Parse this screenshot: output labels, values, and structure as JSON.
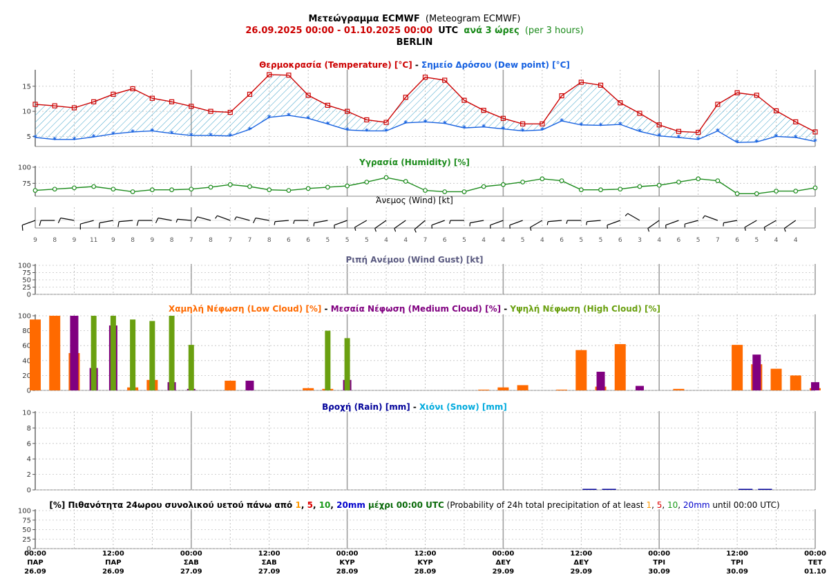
{
  "header": {
    "title_bold": "Μετεώγραμμα ECMWF",
    "title_normal": "(Meteogram ECMWF)",
    "range": "26.09.2025 00:00 - 01.10.2025 00:00",
    "utc": "UTC",
    "step_bold": "ανά 3 ώρες",
    "step_normal": "(per 3 hours)",
    "city": "BERLIN"
  },
  "colors": {
    "temperature": "#cc0000",
    "dewpoint": "#1560e0",
    "hatch": "#3aa0c8",
    "humidity": "#1a8a1a",
    "gust_title": "#5a5a80",
    "low_cloud": "#ff6a00",
    "medium_cloud": "#800080",
    "high_cloud": "#6aa010",
    "rain": "#000099",
    "snow": "#00aadd",
    "grid_solid": "#999999",
    "grid_dash": "#999999"
  },
  "x_labels": [
    {
      "time": "00:00",
      "day": "ΠΑΡ",
      "date": "26.09"
    },
    {
      "time": "12:00",
      "day": "ΠΑΡ",
      "date": "26.09"
    },
    {
      "time": "00:00",
      "day": "ΣΑΒ",
      "date": "27.09"
    },
    {
      "time": "12:00",
      "day": "ΣΑΒ",
      "date": "27.09"
    },
    {
      "time": "00:00",
      "day": "ΚΥΡ",
      "date": "28.09"
    },
    {
      "time": "12:00",
      "day": "ΚΥΡ",
      "date": "28.09"
    },
    {
      "time": "00:00",
      "day": "ΔΕΥ",
      "date": "29.09"
    },
    {
      "time": "12:00",
      "day": "ΔΕΥ",
      "date": "29.09"
    },
    {
      "time": "00:00",
      "day": "ΤΡΙ",
      "date": "30.09"
    },
    {
      "time": "12:00",
      "day": "ΤΡΙ",
      "date": "30.09"
    },
    {
      "time": "00:00",
      "day": "ΤΕΤ",
      "date": "01.10"
    }
  ],
  "chart_data": [
    {
      "type": "line",
      "panel": "temperature",
      "title_parts": [
        {
          "text": "Θερμοκρασία (Temperature) [°C]",
          "role": "temperature"
        },
        {
          "text": " - ",
          "role": "sep"
        },
        {
          "text": "Σημείο Δρόσου (Dew point) [°C]",
          "role": "dewpoint"
        }
      ],
      "step_hours": 3,
      "yticks": [
        5,
        10,
        15
      ],
      "ylim": [
        3,
        18
      ],
      "series": [
        {
          "name": "Θερμοκρασία (Temperature) [°C]",
          "values": [
            11.4,
            11.1,
            10.7,
            11.9,
            13.4,
            14.5,
            12.6,
            11.9,
            11.0,
            10.0,
            9.8,
            13.4,
            17.3,
            17.2,
            13.2,
            11.2,
            10.0,
            8.3,
            7.8,
            12.8,
            16.8,
            16.2,
            12.2,
            10.2,
            8.6,
            7.5,
            7.5,
            13.1,
            15.8,
            15.2,
            11.7,
            9.6,
            7.3,
            6.0,
            5.8,
            11.4,
            13.7,
            13.2,
            10.1,
            7.9,
            5.9
          ]
        },
        {
          "name": "Σημείο Δρόσου (Dew point) [°C]",
          "values": [
            4.8,
            4.4,
            4.4,
            4.9,
            5.5,
            5.9,
            6.1,
            5.6,
            5.2,
            5.2,
            5.1,
            6.4,
            8.8,
            9.2,
            8.6,
            7.5,
            6.3,
            6.1,
            6.1,
            7.7,
            7.9,
            7.6,
            6.7,
            6.9,
            6.5,
            6.1,
            6.3,
            8.1,
            7.3,
            7.2,
            7.4,
            6.0,
            5.1,
            4.8,
            4.4,
            6.1,
            3.8,
            3.9,
            5.0,
            4.8,
            4.0
          ]
        }
      ]
    },
    {
      "type": "line",
      "panel": "humidity",
      "title_parts": [
        {
          "text": "Υγρασία (Humidity) [%]",
          "role": "humidity"
        }
      ],
      "step_hours": 3,
      "yticks": [
        75,
        100
      ],
      "ylim": [
        55,
        100
      ],
      "series": [
        {
          "name": "Υγρασία (Humidity) [%]",
          "values": [
            64,
            66,
            68,
            70,
            66,
            62,
            65,
            65,
            66,
            69,
            73,
            70,
            65,
            64,
            67,
            69,
            71,
            77,
            84,
            78,
            64,
            62,
            62,
            70,
            73,
            77,
            82,
            79,
            65,
            65,
            66,
            70,
            72,
            77,
            82,
            79,
            59,
            59,
            63,
            63,
            68
          ]
        }
      ]
    },
    {
      "type": "table",
      "panel": "wind",
      "title_parts": [
        {
          "text": "Άνεμος (Wind) [kt]",
          "role": "plain"
        }
      ],
      "step_hours": 3,
      "speed_kt": [
        9,
        8,
        9,
        11,
        9,
        8,
        9,
        8,
        7,
        8,
        7,
        7,
        8,
        6,
        6,
        5,
        5,
        5,
        4,
        4,
        7,
        6,
        5,
        4,
        4,
        5,
        4,
        6,
        5,
        5,
        6,
        3,
        4,
        6,
        5,
        7,
        6,
        5,
        4,
        4
      ],
      "direction_from_deg": [
        250,
        270,
        280,
        255,
        260,
        265,
        270,
        280,
        275,
        285,
        290,
        285,
        280,
        265,
        270,
        260,
        250,
        240,
        235,
        235,
        230,
        250,
        270,
        260,
        250,
        250,
        240,
        265,
        270,
        265,
        250,
        300,
        235,
        250,
        255,
        290,
        260,
        240,
        240,
        235
      ]
    },
    {
      "type": "bar",
      "panel": "gust",
      "title_parts": [
        {
          "text": "Ριπή Ανέμου (Wind Gust) [kt]",
          "role": "gust_title"
        }
      ],
      "yticks": [
        0,
        25,
        50,
        75,
        100
      ],
      "ylim": [
        0,
        100
      ],
      "series": [
        {
          "values": []
        }
      ]
    },
    {
      "type": "bar",
      "panel": "clouds",
      "title_parts": [
        {
          "text": "Χαμηλή Νέφωση (Low Cloud) [%]",
          "role": "low_cloud"
        },
        {
          "text": " - ",
          "role": "sep"
        },
        {
          "text": "Μεσαία Νέφωση (Medium Cloud) [%]",
          "role": "medium_cloud"
        },
        {
          "text": " - ",
          "role": "sep"
        },
        {
          "text": "Υψηλή Νέφωση (High Cloud) [%]",
          "role": "high_cloud"
        }
      ],
      "step_hours": 3,
      "yticks": [
        0,
        20,
        40,
        60,
        80,
        100
      ],
      "ylim": [
        0,
        100
      ],
      "series": [
        {
          "name": "Χαμηλή Νέφωση (Low Cloud) [%]",
          "values": [
            95,
            100,
            50,
            0,
            0,
            4,
            14,
            0,
            0,
            0,
            13,
            0,
            0,
            0,
            3,
            2,
            0,
            0,
            0,
            0,
            0,
            0,
            0,
            1,
            4,
            7,
            0,
            1,
            54,
            5,
            62,
            0,
            0,
            2,
            0,
            0,
            61,
            35,
            29,
            20,
            3
          ]
        },
        {
          "name": "Μεσαία Νέφωση (Medium Cloud) [%]",
          "values": [
            0,
            0,
            100,
            30,
            87,
            0,
            0,
            11,
            2,
            0,
            0,
            13,
            0,
            0,
            0,
            0,
            14,
            0,
            0,
            0,
            0,
            0,
            0,
            0,
            0,
            0,
            0,
            0,
            0,
            25,
            0,
            6,
            0,
            0,
            0,
            0,
            0,
            48,
            0,
            0,
            11
          ]
        },
        {
          "name": "Υψηλή Νέφωση (High Cloud) [%]",
          "values": [
            0,
            0,
            0,
            100,
            100,
            95,
            93,
            100,
            61,
            0,
            0,
            0,
            0,
            0,
            0,
            80,
            70,
            0,
            0,
            0,
            0,
            0,
            0,
            0,
            0,
            0,
            0,
            0,
            0,
            0,
            0,
            0,
            0,
            0,
            0,
            0,
            0,
            0,
            0,
            0,
            0
          ]
        }
      ]
    },
    {
      "type": "bar",
      "panel": "precipitation",
      "title_parts": [
        {
          "text": "Βροχή (Rain) [mm]",
          "role": "rain"
        },
        {
          "text": " - ",
          "role": "sep"
        },
        {
          "text": "Χιόνι (Snow) [mm]",
          "role": "snow"
        }
      ],
      "step_hours": 3,
      "yticks": [
        0,
        2,
        4,
        6,
        8,
        10
      ],
      "ylim": [
        0,
        10
      ],
      "series": [
        {
          "name": "Βροχή (Rain) [mm]",
          "values": [
            0,
            0,
            0,
            0,
            0,
            0,
            0,
            0,
            0,
            0,
            0,
            0,
            0,
            0,
            0,
            0,
            0,
            0,
            0,
            0,
            0,
            0,
            0,
            0,
            0,
            0,
            0,
            0,
            0.1,
            0.1,
            0,
            0,
            0,
            0,
            0,
            0,
            0.1,
            0.1,
            0,
            0
          ]
        },
        {
          "name": "Χιόνι (Snow) [mm]",
          "values": [
            0,
            0,
            0,
            0,
            0,
            0,
            0,
            0,
            0,
            0,
            0,
            0,
            0,
            0,
            0,
            0,
            0,
            0,
            0,
            0,
            0,
            0,
            0,
            0,
            0,
            0,
            0,
            0,
            0,
            0,
            0,
            0,
            0,
            0,
            0,
            0,
            0,
            0,
            0,
            0
          ]
        }
      ]
    },
    {
      "type": "bar",
      "panel": "probability",
      "title_parts": [
        {
          "text": "[%] Πιθανότητα 24ωρου συνολικού υετού πάνω από ",
          "role": "plain_bold"
        },
        {
          "text": "1",
          "role": "p1"
        },
        {
          "text": ", ",
          "role": "plain_bold"
        },
        {
          "text": "5",
          "role": "p5"
        },
        {
          "text": ", ",
          "role": "plain_bold"
        },
        {
          "text": "10",
          "role": "p10"
        },
        {
          "text": ", ",
          "role": "plain_bold"
        },
        {
          "text": "20mm",
          "role": "p20"
        },
        {
          "text": " μέχρι 00:00 UTC",
          "role": "green_bold"
        },
        {
          "text": " (Probability of 24h total precipitation of at least ",
          "role": "plain"
        },
        {
          "text": "1",
          "role": "p1n"
        },
        {
          "text": ", ",
          "role": "plain"
        },
        {
          "text": "5",
          "role": "p5n"
        },
        {
          "text": ", ",
          "role": "plain"
        },
        {
          "text": "10",
          "role": "p10n"
        },
        {
          "text": ", ",
          "role": "plain"
        },
        {
          "text": "20mm",
          "role": "p20n"
        },
        {
          "text": " until 00:00 UTC)",
          "role": "plain"
        }
      ],
      "yticks": [
        0,
        25,
        50,
        75,
        100
      ],
      "ylim": [
        0,
        100
      ],
      "series": [
        {
          "values": []
        }
      ]
    }
  ]
}
